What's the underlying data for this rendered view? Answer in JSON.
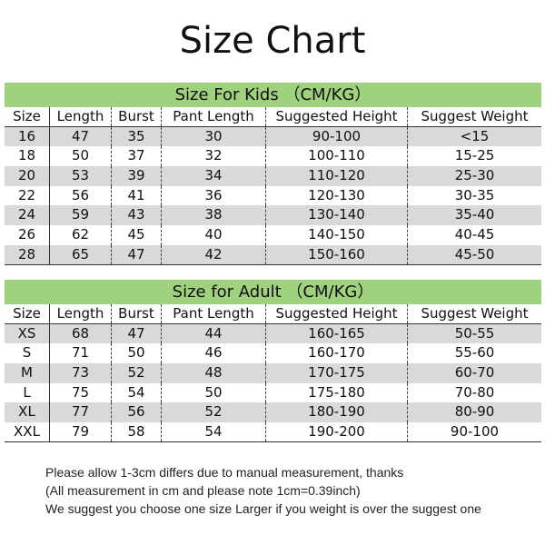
{
  "title": "Size Chart",
  "columns": [
    "Size",
    "Length",
    "Burst",
    "Pant Length",
    "Suggested Height",
    "Suggest Weight"
  ],
  "kids": {
    "heading": "Size For Kids （CM/KG）",
    "rows": [
      [
        "16",
        "47",
        "35",
        "30",
        "90-100",
        "<15"
      ],
      [
        "18",
        "50",
        "37",
        "32",
        "100-110",
        "15-25"
      ],
      [
        "20",
        "53",
        "39",
        "34",
        "110-120",
        "25-30"
      ],
      [
        "22",
        "56",
        "41",
        "36",
        "120-130",
        "30-35"
      ],
      [
        "24",
        "59",
        "43",
        "38",
        "130-140",
        "35-40"
      ],
      [
        "26",
        "62",
        "45",
        "40",
        "140-150",
        "40-45"
      ],
      [
        "28",
        "65",
        "47",
        "42",
        "150-160",
        "45-50"
      ]
    ]
  },
  "adult": {
    "heading": "Size for Adult （CM/KG）",
    "rows": [
      [
        "XS",
        "68",
        "47",
        "44",
        "160-165",
        "50-55"
      ],
      [
        "S",
        "71",
        "50",
        "46",
        "160-170",
        "55-60"
      ],
      [
        "M",
        "73",
        "52",
        "48",
        "170-175",
        "60-70"
      ],
      [
        "L",
        "75",
        "54",
        "50",
        "175-180",
        "70-80"
      ],
      [
        "XL",
        "77",
        "56",
        "52",
        "180-190",
        "80-90"
      ],
      [
        "XXL",
        "79",
        "58",
        "54",
        "190-200",
        "90-100"
      ]
    ]
  },
  "notes": [
    "Please allow 1-3cm differs due to manual measurement, thanks",
    "(All measurement in cm and please note 1cm=0.39inch)",
    "We suggest you choose one size Larger if you weight is over the suggest one"
  ],
  "colors": {
    "band": "#9fd17f",
    "stripe": "#d9d9d9"
  }
}
